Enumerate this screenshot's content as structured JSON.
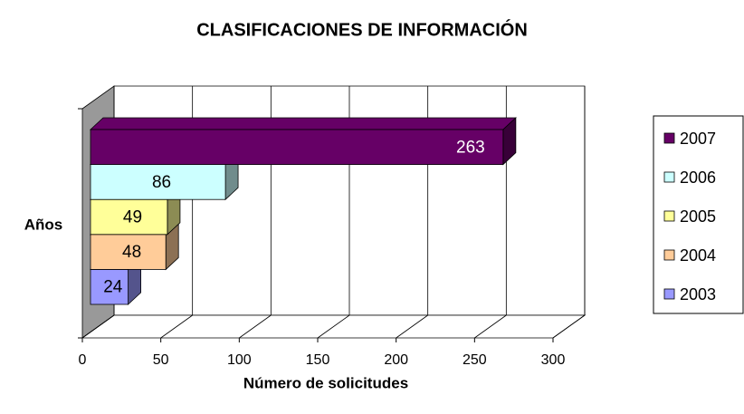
{
  "chart_data": {
    "type": "bar3d-horizontal",
    "title": "CLASIFICACIONES DE INFORMACIÓN",
    "x_label": "Número de solicitudes",
    "y_label": "Años",
    "xlim": [
      0,
      300
    ],
    "xticks": [
      0,
      50,
      100,
      150,
      200,
      250,
      300
    ],
    "grid": true,
    "legend": "right",
    "series": [
      {
        "name": "2003",
        "color": "#9999ff",
        "values": [
          24
        ]
      },
      {
        "name": "2004",
        "color": "#ffcc99",
        "values": [
          48
        ]
      },
      {
        "name": "2005",
        "color": "#ffff99",
        "values": [
          49
        ]
      },
      {
        "name": "2006",
        "color": "#ccffff",
        "values": [
          86
        ]
      },
      {
        "name": "2007",
        "color": "#660066",
        "values": [
          263
        ]
      }
    ]
  }
}
